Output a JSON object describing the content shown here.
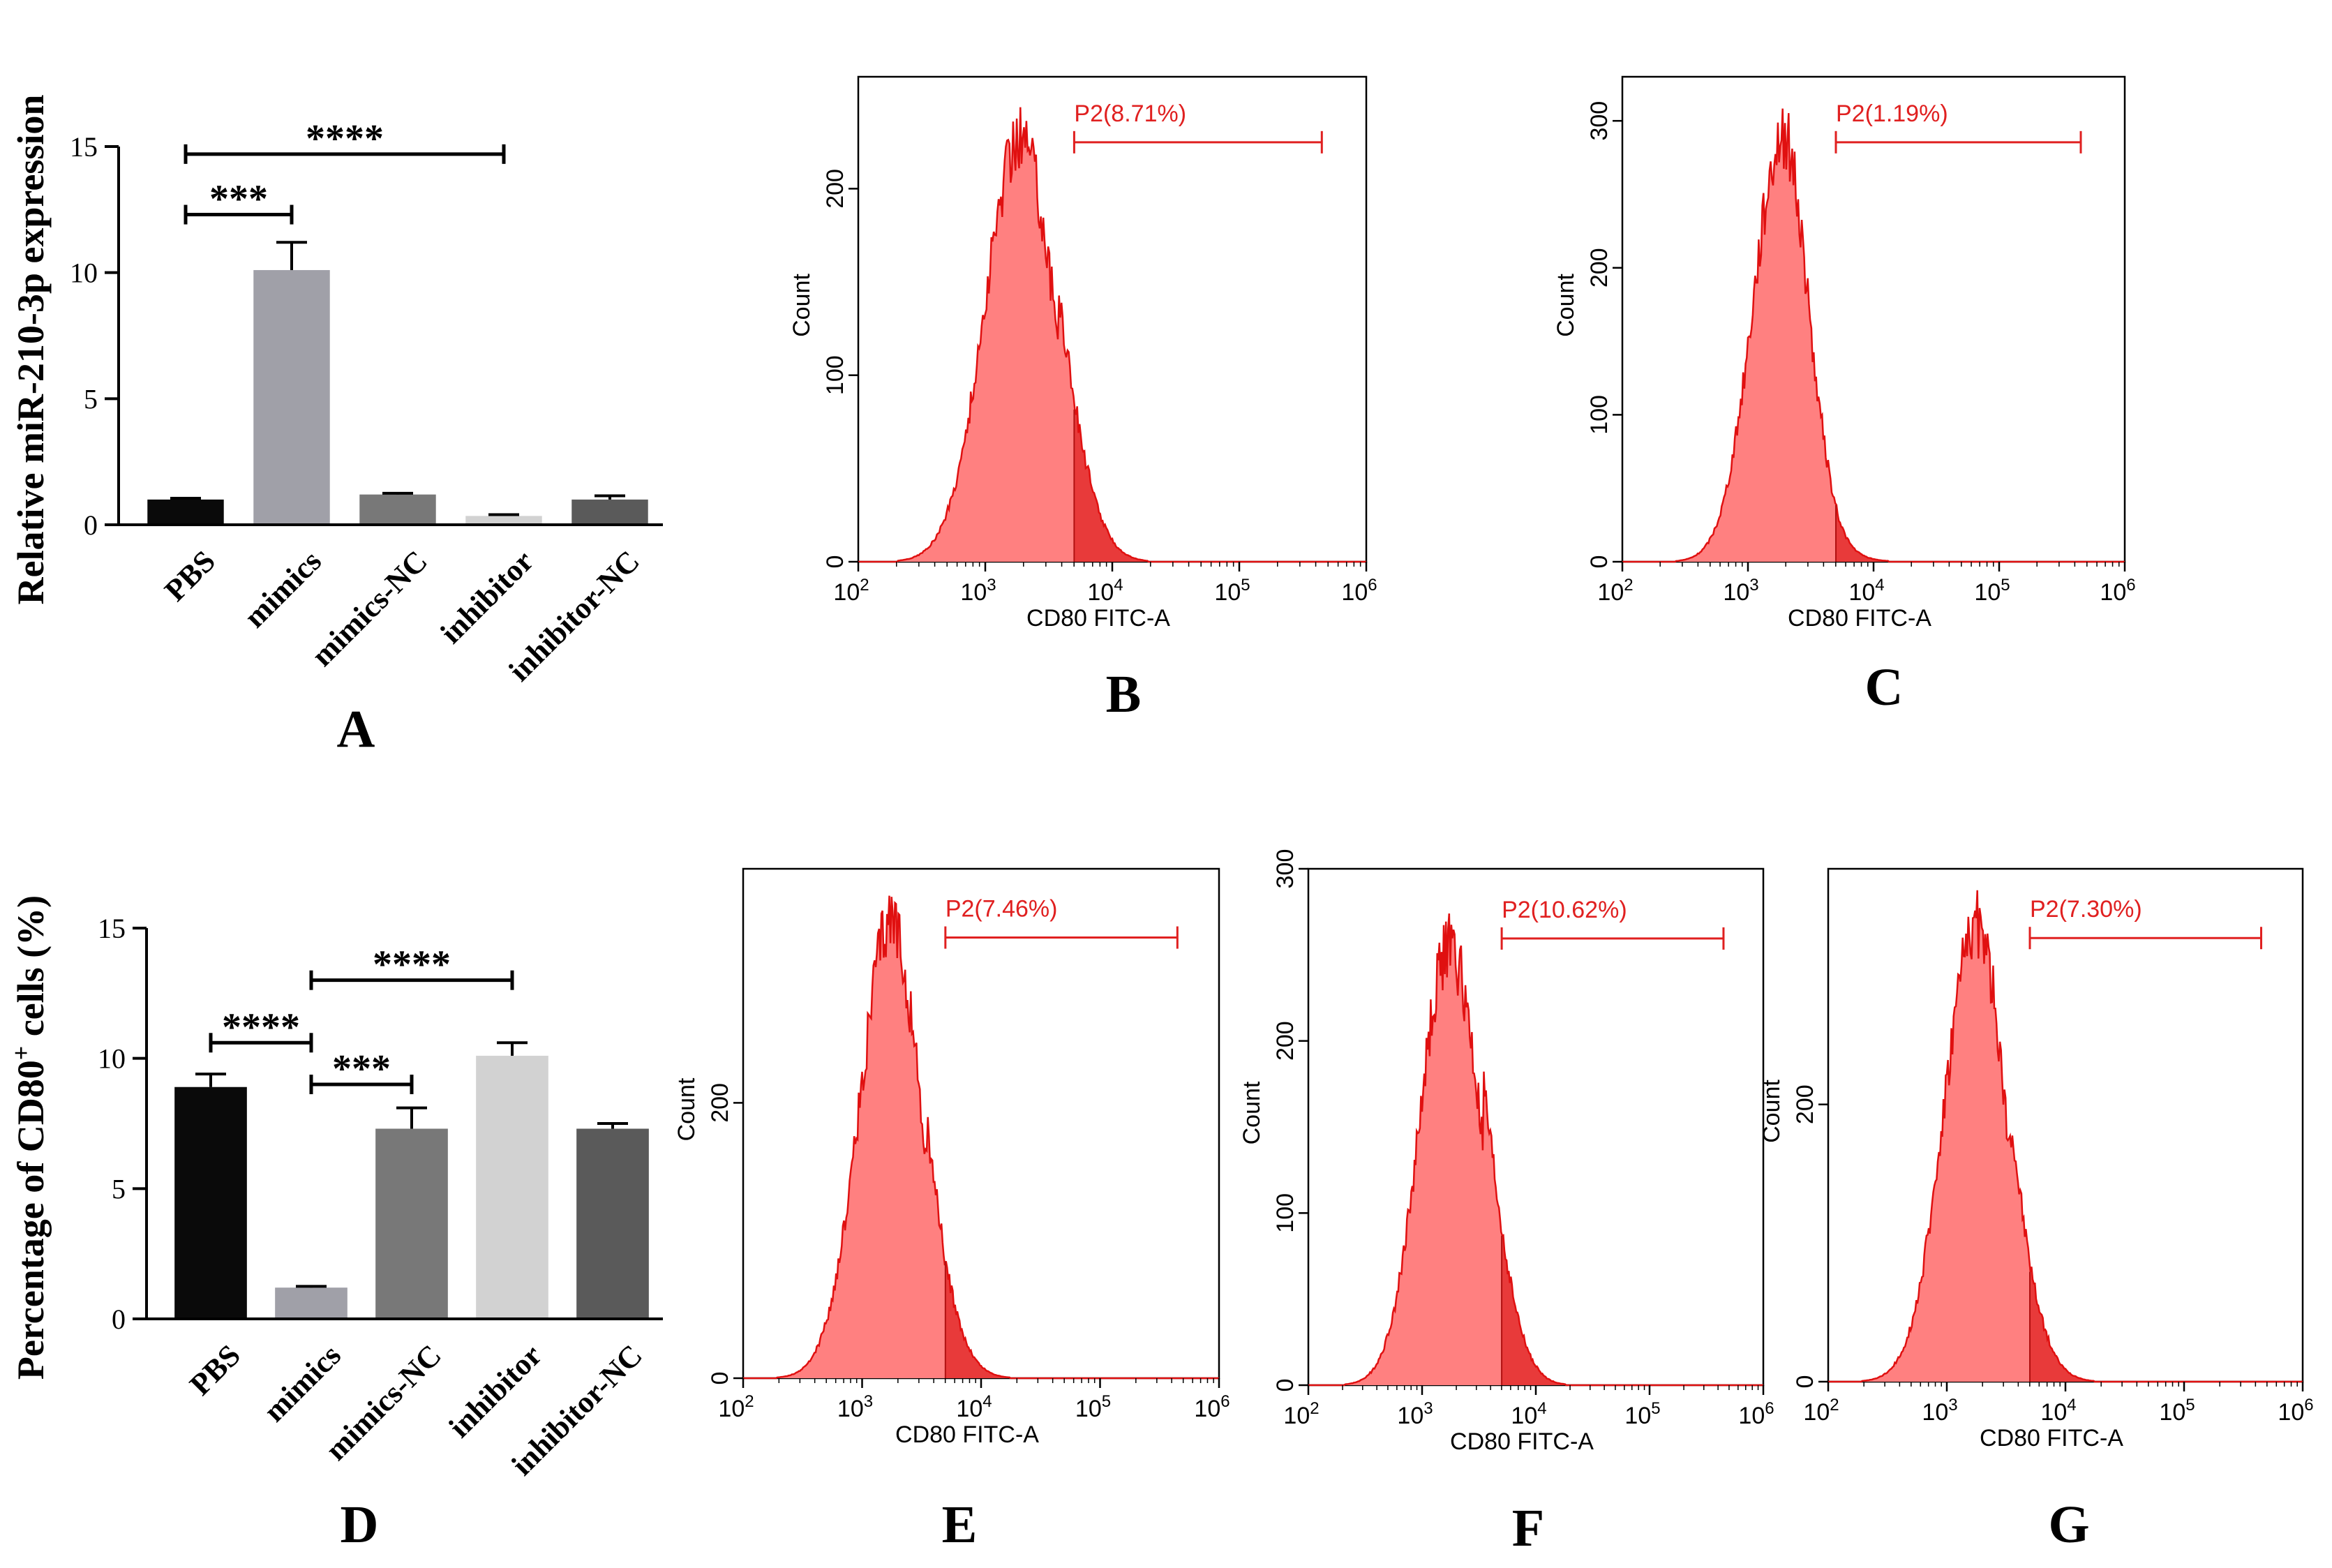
{
  "chart_data": [
    {
      "id": "A",
      "type": "bar",
      "panel_label": "A",
      "ylabel": "Relative miR-210-3p expression",
      "ylim": [
        0,
        15
      ],
      "yticks": [
        "0",
        "5",
        "10",
        "15"
      ],
      "categories": [
        "PBS",
        "mimics",
        "mimics-NC",
        "inhibitor",
        "inhibitor-NC"
      ],
      "values": [
        1.0,
        10.1,
        1.2,
        0.35,
        1.0
      ],
      "errors": [
        0.05,
        1.1,
        0.05,
        0.05,
        0.15
      ],
      "colors": [
        "#0a0a0a",
        "#a0a0a8",
        "#787878",
        "#d2d2d2",
        "#5a5a5a"
      ],
      "significance": [
        {
          "from": "PBS",
          "to": "inhibitor",
          "label": "****",
          "y": 14.7
        },
        {
          "from": "PBS",
          "to": "mimics",
          "label": "***",
          "y": 12.3
        }
      ]
    },
    {
      "id": "B",
      "type": "area",
      "panel_label": "B",
      "xlabel": "CD80 FITC-A",
      "ylabel": "Count",
      "xlim_log10": [
        2,
        6
      ],
      "ylim": [
        0,
        260
      ],
      "yticks": [
        0,
        100,
        200
      ],
      "gate": {
        "label": "P2(8.71%)",
        "from_log10": 3.7,
        "to_log10": 5.65
      },
      "peak_log10": 3.28,
      "peak_count": 228,
      "sigma_left": 0.28,
      "sigma_right": 0.26,
      "tail": 0.12
    },
    {
      "id": "C",
      "type": "area",
      "panel_label": "C",
      "xlabel": "CD80 FITC-A",
      "ylabel": "Count",
      "xlim_log10": [
        2,
        6
      ],
      "ylim": [
        0,
        330
      ],
      "yticks": [
        0,
        100,
        200,
        300
      ],
      "gate": {
        "label": "P2(1.19%)",
        "from_log10": 3.7,
        "to_log10": 5.65
      },
      "peak_log10": 3.28,
      "peak_count": 290,
      "sigma_left": 0.24,
      "sigma_right": 0.2,
      "tail": 0.02
    },
    {
      "id": "D",
      "type": "bar",
      "panel_label": "D",
      "ylabel": "Percentage of CD80",
      "ylabel_sup": "+",
      "ylabel_tail": " cells (%)",
      "ylim": [
        0,
        15
      ],
      "yticks": [
        "0",
        "5",
        "10",
        "15"
      ],
      "categories": [
        "PBS",
        "mimics",
        "mimics-NC",
        "inhibitor",
        "inhibitor-NC"
      ],
      "values": [
        8.9,
        1.2,
        7.3,
        10.1,
        7.3
      ],
      "errors": [
        0.5,
        0.05,
        0.8,
        0.5,
        0.2
      ],
      "colors": [
        "#0a0a0a",
        "#a0a0a8",
        "#787878",
        "#d2d2d2",
        "#5a5a5a"
      ],
      "significance": [
        {
          "from": "mimics",
          "to": "inhibitor",
          "label": "****",
          "y": 13.0
        },
        {
          "from": "PBS",
          "to": "mimics",
          "label": "****",
          "y": 10.6
        },
        {
          "from": "mimics",
          "to": "mimics-NC",
          "label": "***",
          "y": 9.0
        }
      ]
    },
    {
      "id": "E",
      "type": "area",
      "panel_label": "E",
      "xlabel": "CD80 FITC-A",
      "ylabel": "Count",
      "xlim_log10": [
        2,
        6
      ],
      "ylim": [
        0,
        370
      ],
      "yticks": [
        0,
        200
      ],
      "gate": {
        "label": "P2(7.46%)",
        "from_log10": 3.7,
        "to_log10": 5.65
      },
      "peak_log10": 3.25,
      "peak_count": 330,
      "sigma_left": 0.27,
      "sigma_right": 0.24,
      "tail": 0.1
    },
    {
      "id": "F",
      "type": "area",
      "panel_label": "F",
      "xlabel": "CD80 FITC-A",
      "ylabel": "Count",
      "xlim_log10": [
        2,
        6
      ],
      "ylim": [
        0,
        300
      ],
      "yticks": [
        0,
        100,
        200,
        300
      ],
      "gate": {
        "label": "P2(10.62%)",
        "from_log10": 3.7,
        "to_log10": 5.65
      },
      "peak_log10": 3.24,
      "peak_count": 255,
      "sigma_left": 0.26,
      "sigma_right": 0.27,
      "tail": 0.14
    },
    {
      "id": "G",
      "type": "area",
      "panel_label": "G",
      "xlabel": "CD80 FITC-A",
      "ylabel": "Count",
      "xlim_log10": [
        2,
        6
      ],
      "ylim": [
        0,
        370
      ],
      "yticks": [
        0,
        200
      ],
      "gate": {
        "label": "P2(7.30%)",
        "from_log10": 3.7,
        "to_log10": 5.65
      },
      "peak_log10": 3.25,
      "peak_count": 330,
      "sigma_left": 0.27,
      "sigma_right": 0.24,
      "tail": 0.1
    }
  ],
  "style": {
    "flow_fill": "#ff8080",
    "flow_gate_fill": "#e83a3a",
    "flow_line": "#e01010",
    "gate_color": "#e02020",
    "label_color": "#e02020"
  }
}
